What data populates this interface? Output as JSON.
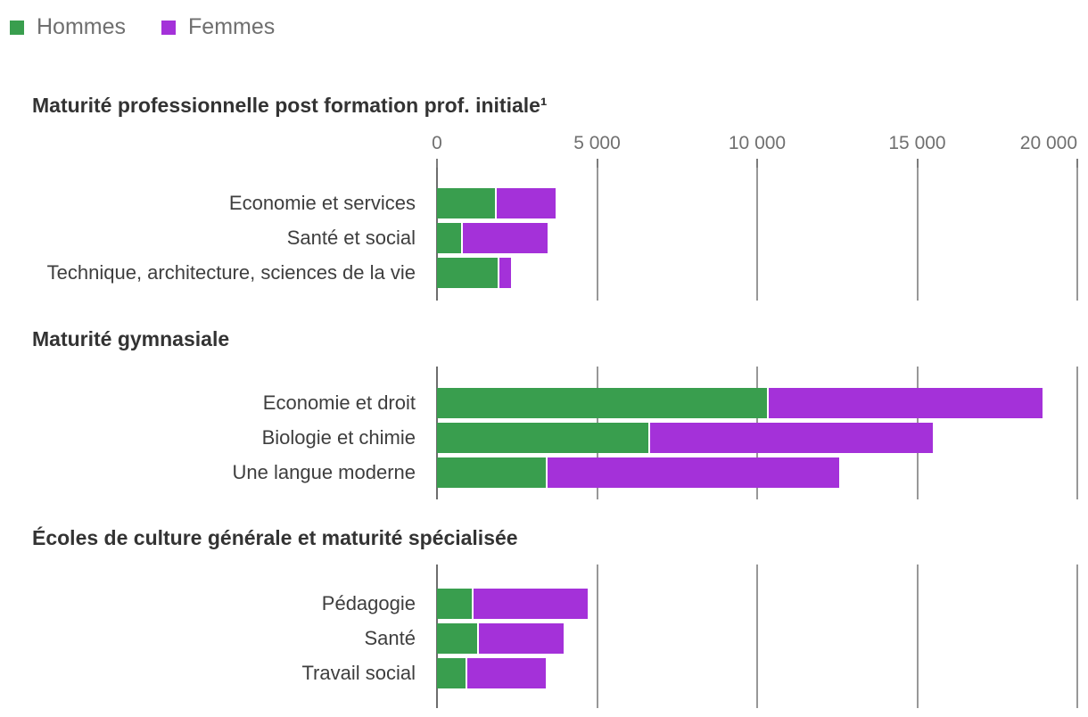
{
  "legend": {
    "items": [
      {
        "label": "Hommes",
        "color": "#399e4e"
      },
      {
        "label": "Femmes",
        "color": "#a431d9"
      }
    ]
  },
  "colors": {
    "hommes": "#399e4e",
    "femmes": "#a431d9",
    "gridline": "#989898",
    "axis_line": "#6d6d6d",
    "title_text": "#333333",
    "label_text": "#3e3e3e",
    "axis_text": "#707070"
  },
  "axis": {
    "max": 20000,
    "tick_values": [
      0,
      5000,
      10000,
      15000,
      20000
    ],
    "tick_labels": [
      "0",
      "5 000",
      "10 000",
      "15 000",
      "20 000"
    ]
  },
  "chart_data": [
    {
      "type": "bar",
      "orientation": "horizontal",
      "stacked": true,
      "title": "Maturité professionnelle post formation prof. initiale¹",
      "categories": [
        "Economie et services",
        "Santé et social",
        "Technique, architecture, sciences de la vie"
      ],
      "series": [
        {
          "name": "Hommes",
          "values": [
            1800,
            750,
            1900
          ]
        },
        {
          "name": "Femmes",
          "values": [
            1900,
            2700,
            420
          ]
        }
      ],
      "xlim": [
        0,
        20000
      ],
      "grid": true,
      "axis_labels_shown": true
    },
    {
      "type": "bar",
      "orientation": "horizontal",
      "stacked": true,
      "title": "Maturité gymnasiale",
      "categories": [
        "Economie et droit",
        "Biologie et chimie",
        "Une langue moderne"
      ],
      "series": [
        {
          "name": "Hommes",
          "values": [
            10300,
            6600,
            3400
          ]
        },
        {
          "name": "Femmes",
          "values": [
            8600,
            8900,
            9150
          ]
        }
      ],
      "xlim": [
        0,
        20000
      ],
      "grid": true,
      "axis_labels_shown": false
    },
    {
      "type": "bar",
      "orientation": "horizontal",
      "stacked": true,
      "title": "Écoles de culture générale et maturité spécialisée",
      "categories": [
        "Pédagogie",
        "Santé",
        "Travail social"
      ],
      "series": [
        {
          "name": "Hommes",
          "values": [
            1100,
            1250,
            900
          ]
        },
        {
          "name": "Femmes",
          "values": [
            3600,
            2700,
            2500
          ]
        }
      ],
      "xlim": [
        0,
        20000
      ],
      "grid": true,
      "axis_labels_shown": false
    }
  ]
}
